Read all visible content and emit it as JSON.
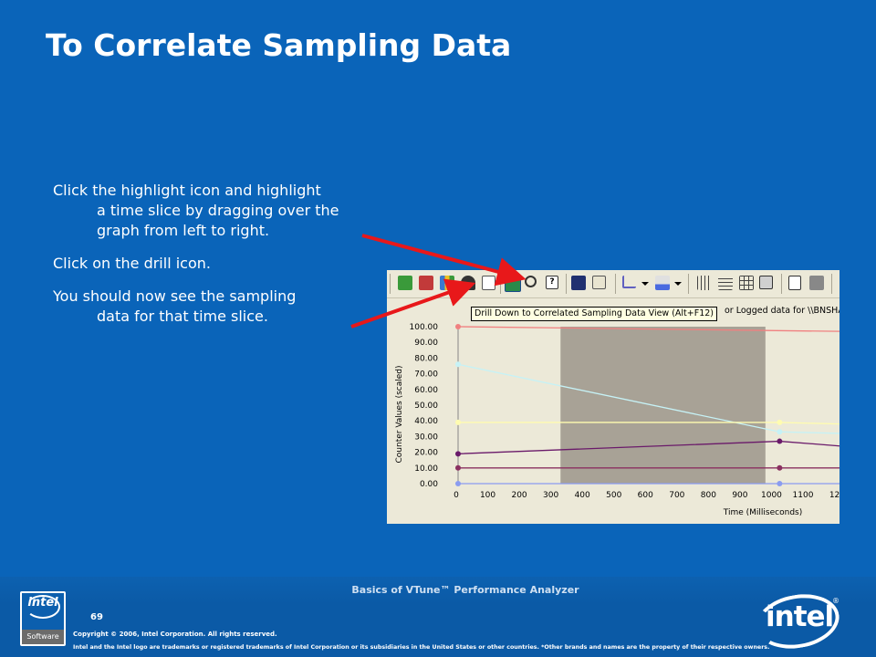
{
  "slide": {
    "title": "To Correlate Sampling Data",
    "bullets": [
      {
        "first": "Click the highlight icon and highlight",
        "cont": "a time slice by dragging over the graph from left to right."
      },
      {
        "first": "Click on the drill icon.",
        "cont": ""
      },
      {
        "first": "You should now see the sampling",
        "cont": "data for that time slice."
      }
    ]
  },
  "footer": {
    "title": "Basics of VTune™ Performance Analyzer",
    "page_number": "69",
    "copyright": "Copyright © 2006, Intel Corporation. All rights reserved.",
    "legal": "Intel and the Intel logo are trademarks or registered trademarks of Intel Corporation or its subsidiaries in the United States or other countries. *Other brands and names are the property of their respective owners.",
    "software_badge": "Software",
    "logo_small": "intel",
    "logo_big": "intel",
    "logo_reg": "®"
  },
  "screenshot": {
    "tooltip": "Drill Down to Correlated Sampling Data View (Alt+F12)",
    "subtitle": "or Logged data for \\\\BNSHAI",
    "toolbar_icons": [
      "add-counter-icon",
      "remove-counter-icon",
      "counter-bar-icon",
      "highlight-icon",
      "properties-icon",
      "drill-down-icon",
      "zoom-icon",
      "help-icon",
      "save-icon",
      "copy-icon",
      "chart-type-icon",
      "dropdown-icon",
      "fill-color-icon",
      "dropdown-icon",
      "vertical-grid-icon",
      "horizontal-grid-icon",
      "table-icon",
      "export-icon",
      "print-preview-icon",
      "print-icon"
    ],
    "colors": {
      "highlight": "#a8a296",
      "background": "#ece9d8",
      "arrow": "#e8181a"
    }
  },
  "chart_data": {
    "type": "line",
    "ylabel": "Counter Values (scaled)",
    "xlabel": "Time (Milliseconds)",
    "x_ticks": [
      "0",
      "100",
      "200",
      "300",
      "400",
      "500",
      "600",
      "700",
      "800",
      "900",
      "1000",
      "1100",
      "12"
    ],
    "y_ticks": [
      "0.00",
      "10.00",
      "20.00",
      "30.00",
      "40.00",
      "50.00",
      "60.00",
      "70.00",
      "80.00",
      "90.00",
      "100.00"
    ],
    "ylim": [
      0,
      100
    ],
    "xlim": [
      0,
      1210
    ],
    "highlight_range": [
      325,
      975
    ],
    "series": [
      {
        "color": "#c6f2f6",
        "x": [
          0,
          1020,
          1210
        ],
        "y": [
          76,
          33,
          32
        ]
      },
      {
        "color": "#fffcb0",
        "x": [
          0,
          1020,
          1210
        ],
        "y": [
          39,
          39,
          38
        ]
      },
      {
        "color": "#6a1a6a",
        "x": [
          0,
          1020,
          1210
        ],
        "y": [
          19,
          27,
          24
        ]
      },
      {
        "color": "#8a3060",
        "x": [
          0,
          1020,
          1210
        ],
        "y": [
          10,
          10,
          10
        ]
      },
      {
        "color": "#8a9cf0",
        "x": [
          0,
          1020,
          1210
        ],
        "y": [
          0,
          0,
          0
        ]
      },
      {
        "color": "#f08080",
        "x": [
          0,
          1210
        ],
        "y": [
          100,
          97
        ]
      }
    ]
  }
}
